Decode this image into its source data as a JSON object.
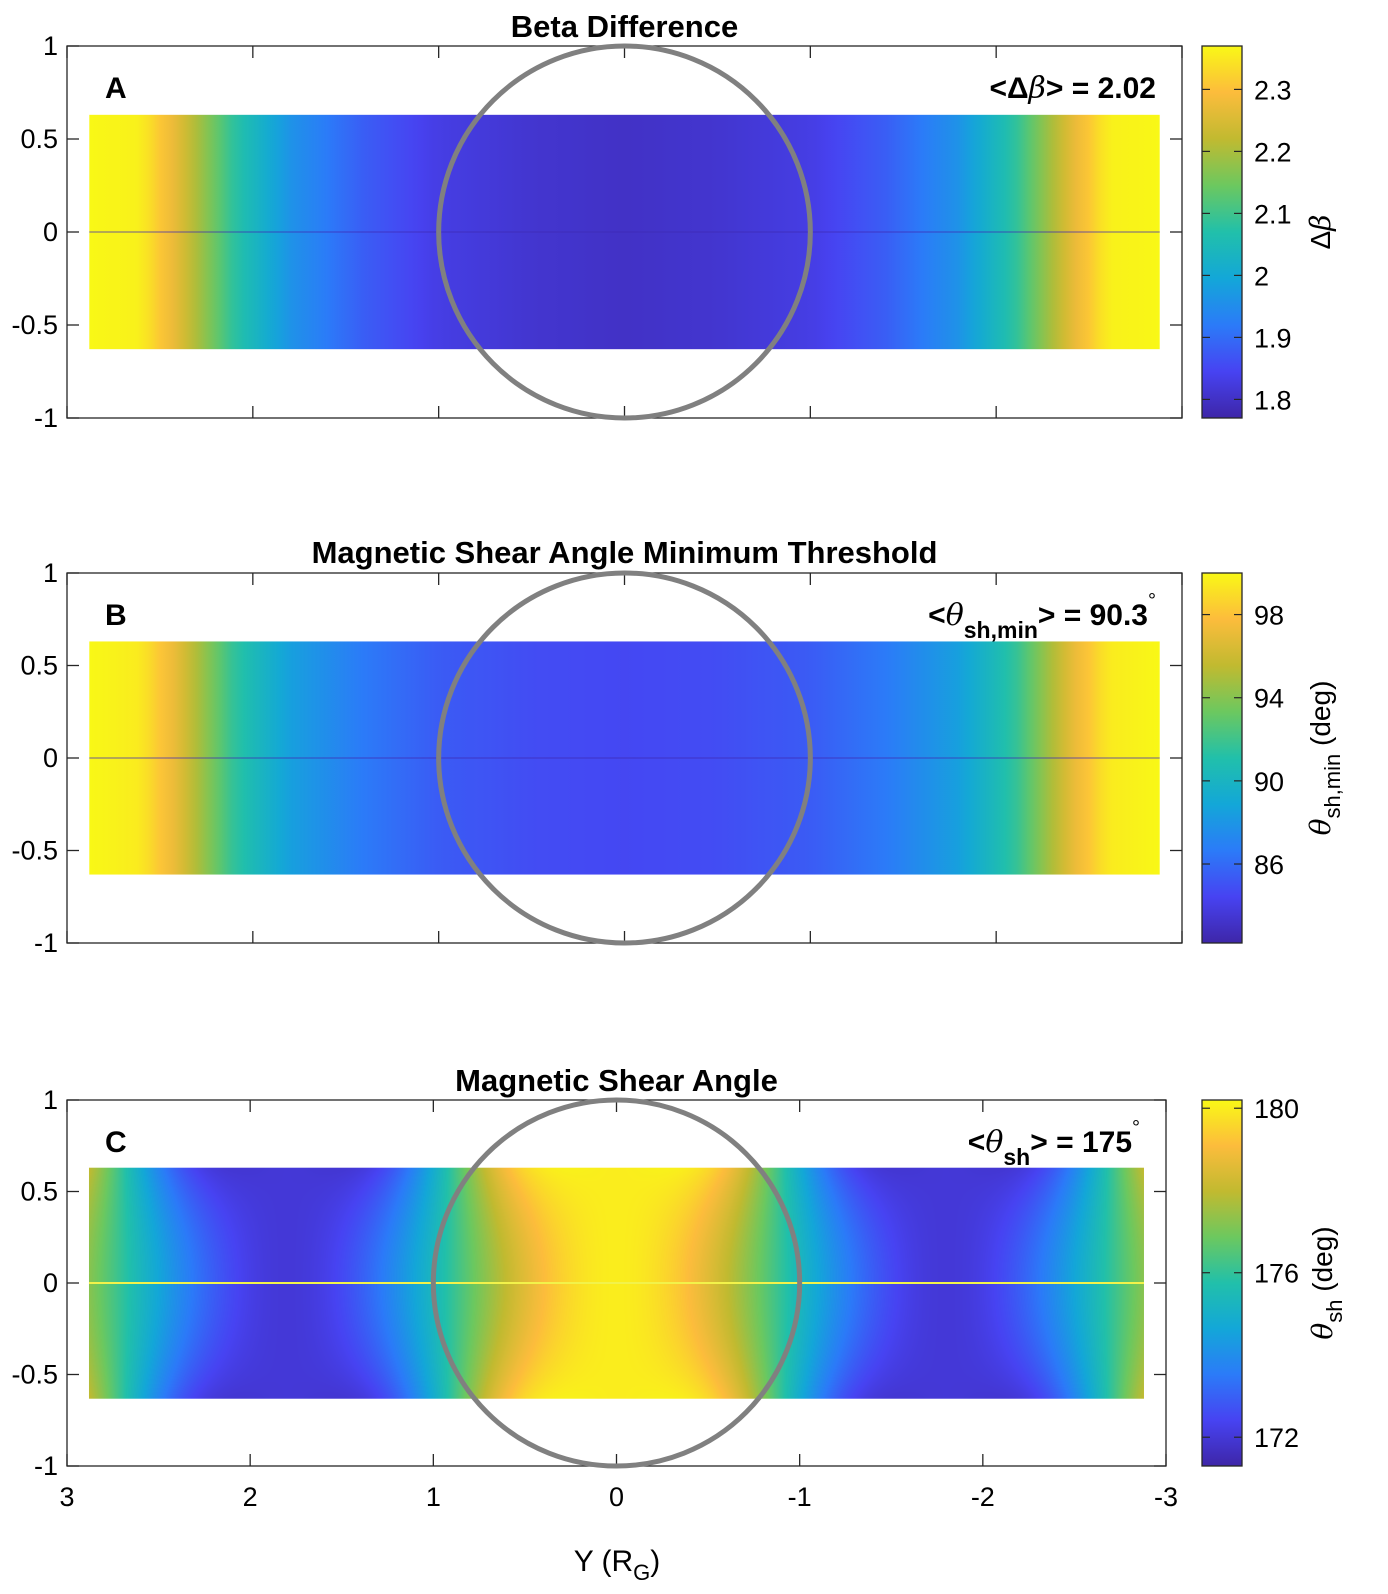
{
  "chart_data": [
    {
      "type": "heatmap",
      "panel_label": "A",
      "title": "Beta Difference",
      "annotation": {
        "open": "<Δ",
        "var": "β",
        "close": "> = 2.02",
        "sub": "",
        "deg": ""
      },
      "colorbar": {
        "label": "Δβ",
        "label_main": "Δ",
        "label_var": "β",
        "label_sub": "",
        "label_unit": "",
        "range": [
          1.77,
          2.37
        ],
        "ticks": [
          1.8,
          1.9,
          2,
          2.1,
          2.2,
          2.3
        ],
        "tick_labels": [
          "1.8",
          "1.9",
          "2",
          "2.1",
          "2.2",
          "2.3"
        ]
      },
      "profile": {
        "y": [
          2.88,
          2.6,
          2.4,
          2.1,
          1.8,
          1.4,
          1.0,
          0.5,
          0.0,
          -0.5,
          -1.0,
          -1.4,
          -1.8,
          -2.1,
          -2.4,
          -2.6,
          -2.88
        ],
        "value": [
          2.37,
          2.36,
          2.26,
          2.08,
          1.96,
          1.88,
          1.83,
          1.81,
          1.8,
          1.81,
          1.83,
          1.88,
          1.96,
          2.08,
          2.26,
          2.36,
          2.37
        ],
        "z_extent": [
          -0.63,
          0.63
        ]
      },
      "xlim": [
        3,
        -3
      ],
      "ylim": [
        -1,
        1
      ],
      "yticks": [
        1,
        0.5,
        0,
        -0.5,
        -1
      ],
      "ytick_labels": [
        "1",
        "0.5",
        "0",
        "-0.5",
        "-1"
      ],
      "xticks": [
        3,
        2,
        1,
        0,
        -1,
        -2,
        -3
      ],
      "xtick_labels": [],
      "circle": {
        "center": [
          0,
          0
        ],
        "radius": 1
      }
    },
    {
      "type": "heatmap",
      "panel_label": "B",
      "title": "Magnetic Shear Angle Minimum Threshold",
      "annotation": {
        "open": "<",
        "var": "θ",
        "close": "> = 90.3",
        "sub": "sh,min",
        "deg": "°"
      },
      "colorbar": {
        "label": "θsh,min (deg)",
        "label_main": "",
        "label_var": "θ",
        "label_sub": "sh,min",
        "label_unit": " (deg)",
        "range": [
          82.2,
          100
        ],
        "ticks": [
          86,
          90,
          94,
          98
        ],
        "tick_labels": [
          "86",
          "90",
          "94",
          "98"
        ]
      },
      "profile": {
        "y": [
          2.88,
          2.6,
          2.4,
          2.1,
          1.8,
          1.4,
          1.0,
          0.5,
          0.0,
          -0.5,
          -1.0,
          -1.4,
          -1.8,
          -2.1,
          -2.4,
          -2.6,
          -2.88
        ],
        "value": [
          100,
          99.5,
          96.8,
          91.5,
          88.5,
          86.6,
          85.4,
          84.8,
          84.6,
          84.8,
          85.4,
          86.6,
          88.5,
          91.5,
          96.8,
          99.5,
          100
        ],
        "z_extent": [
          -0.63,
          0.63
        ]
      },
      "xlim": [
        3,
        -3
      ],
      "ylim": [
        -1,
        1
      ],
      "yticks": [
        1,
        0.5,
        0,
        -0.5,
        -1
      ],
      "ytick_labels": [
        "1",
        "0.5",
        "0",
        "-0.5",
        "-1"
      ],
      "xticks": [
        3,
        2,
        1,
        0,
        -1,
        -2,
        -3
      ],
      "xtick_labels": [],
      "circle": {
        "center": [
          0,
          0
        ],
        "radius": 1
      }
    },
    {
      "type": "heatmap",
      "panel_label": "C",
      "title": "Magnetic Shear Angle",
      "annotation": {
        "open": "<",
        "var": "θ",
        "close": "> = 175",
        "sub": "sh",
        "deg": "°"
      },
      "colorbar": {
        "label": "θsh (deg)",
        "label_main": "",
        "label_var": "θ",
        "label_sub": "sh",
        "label_unit": " (deg)",
        "range": [
          171.3,
          180.2
        ],
        "ticks": [
          172,
          176,
          180
        ],
        "tick_labels": [
          "172",
          "176",
          "180"
        ]
      },
      "field": {
        "form": "mid + amp * cos(pi*y/1.8) * (1 + 0.35*(1 - cos(2*pi*y/1.8))*(z/0.63)^2)",
        "mid": 176,
        "amp": 4,
        "z_extent": [
          -0.63,
          0.63
        ]
      },
      "xlim": [
        3,
        -3
      ],
      "ylim": [
        -1,
        1
      ],
      "yticks": [
        1,
        0.5,
        0,
        -0.5,
        -1
      ],
      "ytick_labels": [
        "1",
        "0.5",
        "0",
        "-0.5",
        "-1"
      ],
      "xticks": [
        3,
        2,
        1,
        0,
        -1,
        -2,
        -3
      ],
      "xtick_labels": [
        "3",
        "2",
        "1",
        "0",
        "-1",
        "-2",
        "-3"
      ],
      "circle": {
        "center": [
          0,
          0
        ],
        "radius": 1
      }
    }
  ],
  "xaxis": {
    "label_main": "Y (R",
    "label_sub": "G",
    "label_close": ")"
  },
  "colors": {
    "circle": "#808080",
    "axes": "#262626",
    "colormap": [
      "#3e26a8",
      "#4743f2",
      "#2b7bf8",
      "#13a7d8",
      "#21c0aa",
      "#6cc85f",
      "#c1ba30",
      "#fcbc3c",
      "#f9f816"
    ]
  }
}
